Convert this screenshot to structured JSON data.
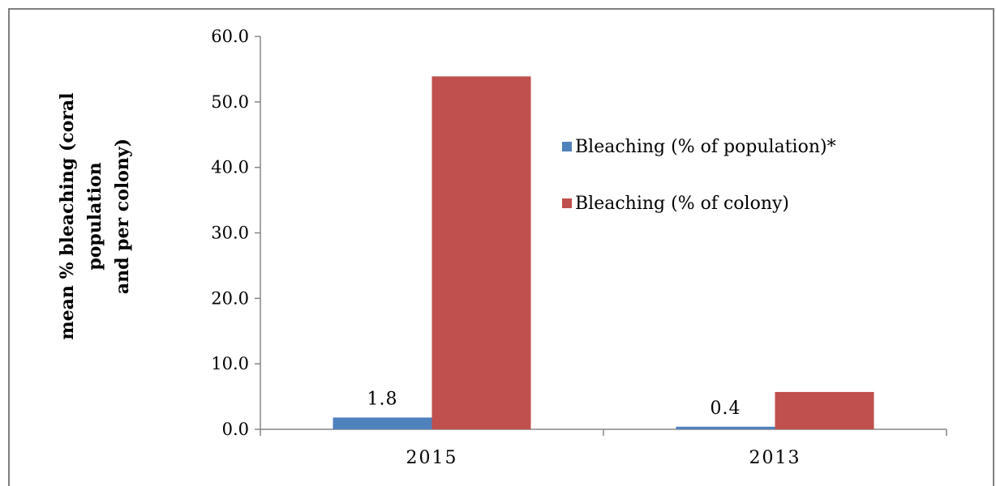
{
  "chart_data": {
    "type": "bar",
    "categories": [
      "2015",
      "2013"
    ],
    "series": [
      {
        "name": "Bleaching (% of population)*",
        "values": [
          1.8,
          0.4
        ],
        "color": "#4f81bd",
        "data_labels": [
          "1.8",
          "0.4"
        ]
      },
      {
        "name": "Bleaching (% of colony)",
        "values": [
          53.9,
          5.7
        ],
        "color": "#c0504d"
      }
    ],
    "ylabel_lines": [
      "mean % bleaching (coral",
      "population",
      "and per colony)"
    ],
    "ylim": [
      0,
      60
    ],
    "y_ticks": [
      "0.0",
      "10.0",
      "20.0",
      "30.0",
      "40.0",
      "50.0",
      "60.0"
    ],
    "grid": false,
    "legend_position": "right"
  }
}
